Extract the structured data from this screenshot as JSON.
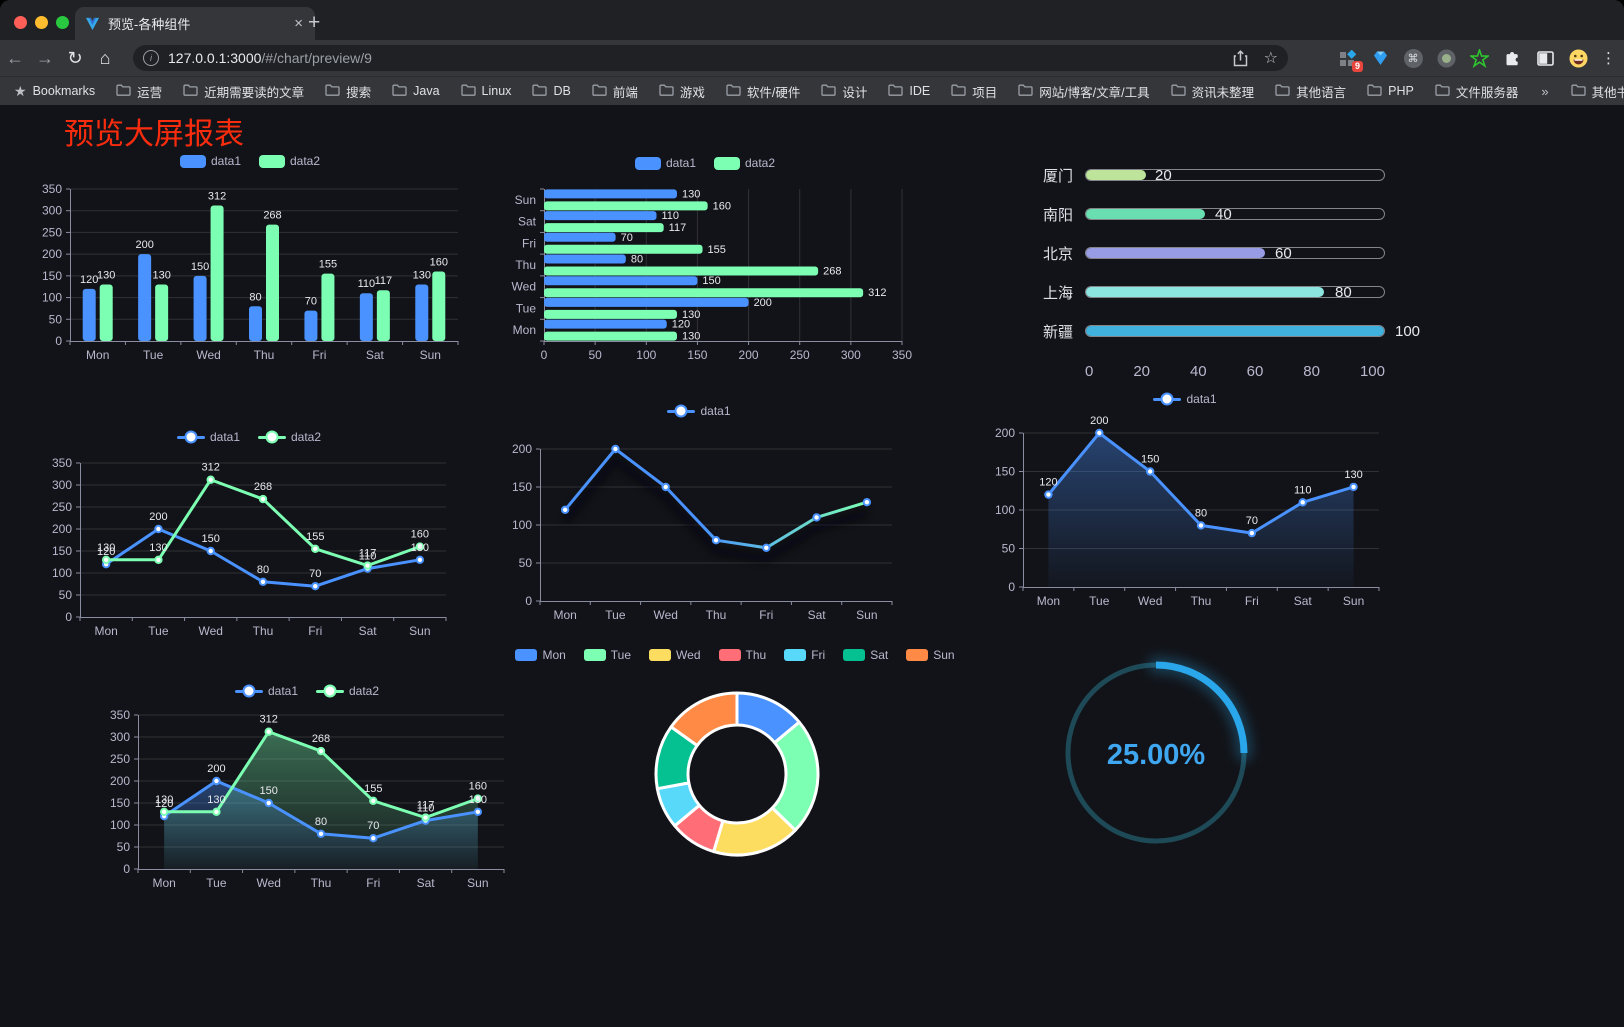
{
  "browser": {
    "tab_title": "预览-各种组件",
    "new_tab_glyph": "+",
    "close_glyph": "×",
    "url_host": "127.0.0.1:3000",
    "url_path": "/#/chart/preview/9",
    "bookmarks_label": "Bookmarks",
    "bookmarks": [
      "运营",
      "近期需要读的文章",
      "搜索",
      "Java",
      "Linux",
      "DB",
      "前端",
      "游戏",
      "软件/硬件",
      "设计",
      "IDE",
      "项目",
      "网站/博客/文章/工具",
      "资讯未整理",
      "其他语言",
      "PHP",
      "文件服务器"
    ],
    "bookmarks_overflow": "»",
    "other_bookmarks": "其他书签",
    "extension_badge": "9"
  },
  "page": {
    "title": "预览大屏报表",
    "title_color": "#fa2c0e",
    "background": "#121318"
  },
  "palette": {
    "blue": "#4992ff",
    "green": "#7cffb2",
    "yellow": "#fddd60",
    "red": "#ff6e76",
    "cyan": "#58d9f9",
    "teal": "#05c091",
    "orange": "#ff8a45",
    "axis_label": "#b9b8ce",
    "value_label": "#e8e8ee"
  },
  "chart_data": [
    {
      "id": "bar-grouped",
      "type": "bar",
      "categories": [
        "Mon",
        "Tue",
        "Wed",
        "Thu",
        "Fri",
        "Sat",
        "Sun"
      ],
      "series": [
        {
          "name": "data1",
          "color": "#4992ff",
          "values": [
            120,
            200,
            150,
            80,
            70,
            110,
            130
          ]
        },
        {
          "name": "data2",
          "color": "#7cffb2",
          "values": [
            130,
            130,
            312,
            268,
            155,
            117,
            160
          ]
        }
      ],
      "ymax": 350,
      "ystep": 50,
      "legend_position": "top"
    },
    {
      "id": "bar-horizontal",
      "type": "bar-horizontal",
      "categories_top_to_bottom": [
        "Sun",
        "Sat",
        "Fri",
        "Thu",
        "Wed",
        "Tue",
        "Mon"
      ],
      "series": [
        {
          "name": "data1",
          "color": "#4992ff",
          "values": [
            130,
            110,
            70,
            80,
            150,
            200,
            120
          ]
        },
        {
          "name": "data2",
          "color": "#7cffb2",
          "values": [
            160,
            117,
            155,
            268,
            312,
            130,
            130
          ]
        }
      ],
      "xmax": 350,
      "xstep": 50,
      "legend_position": "top"
    },
    {
      "id": "city-progress",
      "type": "bar",
      "subtype": "progress-list",
      "items": [
        {
          "label": "厦门",
          "value": 20,
          "color": "#bee49c"
        },
        {
          "label": "南阳",
          "value": 40,
          "color": "#69dfb1"
        },
        {
          "label": "北京",
          "value": 60,
          "color": "#979ce4"
        },
        {
          "label": "上海",
          "value": 80,
          "color": "#8de5e0"
        },
        {
          "label": "新疆",
          "value": 100,
          "color": "#40b1dd"
        }
      ],
      "max": 100,
      "axis_ticks": [
        0,
        20,
        40,
        60,
        80,
        100
      ]
    },
    {
      "id": "line-two-series",
      "type": "line",
      "categories": [
        "Mon",
        "Tue",
        "Wed",
        "Thu",
        "Fri",
        "Sat",
        "Sun"
      ],
      "series": [
        {
          "name": "data1",
          "color": "#4992ff",
          "values": [
            120,
            200,
            150,
            80,
            70,
            110,
            130
          ]
        },
        {
          "name": "data2",
          "color": "#7cffb2",
          "values": [
            130,
            130,
            312,
            268,
            155,
            117,
            160
          ]
        }
      ],
      "ymax": 350,
      "ystep": 50,
      "labels": true
    },
    {
      "id": "line-gradient",
      "type": "line",
      "categories": [
        "Mon",
        "Tue",
        "Wed",
        "Thu",
        "Fri",
        "Sat",
        "Sun"
      ],
      "series": [
        {
          "name": "data1",
          "color": "#4992ff",
          "gradient_to": "#7cffb2",
          "values": [
            120,
            200,
            150,
            80,
            70,
            110,
            130
          ]
        }
      ],
      "ymax": 200,
      "ystep": 50,
      "labels": false
    },
    {
      "id": "line-area",
      "type": "area",
      "categories": [
        "Mon",
        "Tue",
        "Wed",
        "Thu",
        "Fri",
        "Sat",
        "Sun"
      ],
      "series": [
        {
          "name": "data1",
          "color": "#4992ff",
          "values": [
            120,
            200,
            150,
            80,
            70,
            110,
            130
          ]
        }
      ],
      "ymax": 200,
      "ystep": 50,
      "labels": true
    },
    {
      "id": "line-area-two",
      "type": "area",
      "categories": [
        "Mon",
        "Tue",
        "Wed",
        "Thu",
        "Fri",
        "Sat",
        "Sun"
      ],
      "series": [
        {
          "name": "data1",
          "color": "#4992ff",
          "values": [
            120,
            200,
            150,
            80,
            70,
            110,
            130
          ]
        },
        {
          "name": "data2",
          "color": "#7cffb2",
          "values": [
            130,
            130,
            312,
            268,
            155,
            117,
            160
          ]
        }
      ],
      "ymax": 350,
      "ystep": 50,
      "labels": true
    },
    {
      "id": "donut-week",
      "type": "pie",
      "categories": [
        "Mon",
        "Tue",
        "Wed",
        "Thu",
        "Fri",
        "Sat",
        "Sun"
      ],
      "values": [
        120,
        200,
        150,
        80,
        70,
        110,
        130
      ],
      "colors": [
        "#4992ff",
        "#7cffb2",
        "#fddd60",
        "#ff6e76",
        "#58d9f9",
        "#05c091",
        "#ff8a45"
      ],
      "inner_radius_ratio": 0.6,
      "legend_position": "top"
    },
    {
      "id": "ring-progress",
      "type": "gauge",
      "percent": 25,
      "value_text": "25.00%",
      "arc_color": "#2aa7ea",
      "track_color": "#1e4956",
      "text_color": "#3fa7f0"
    }
  ]
}
